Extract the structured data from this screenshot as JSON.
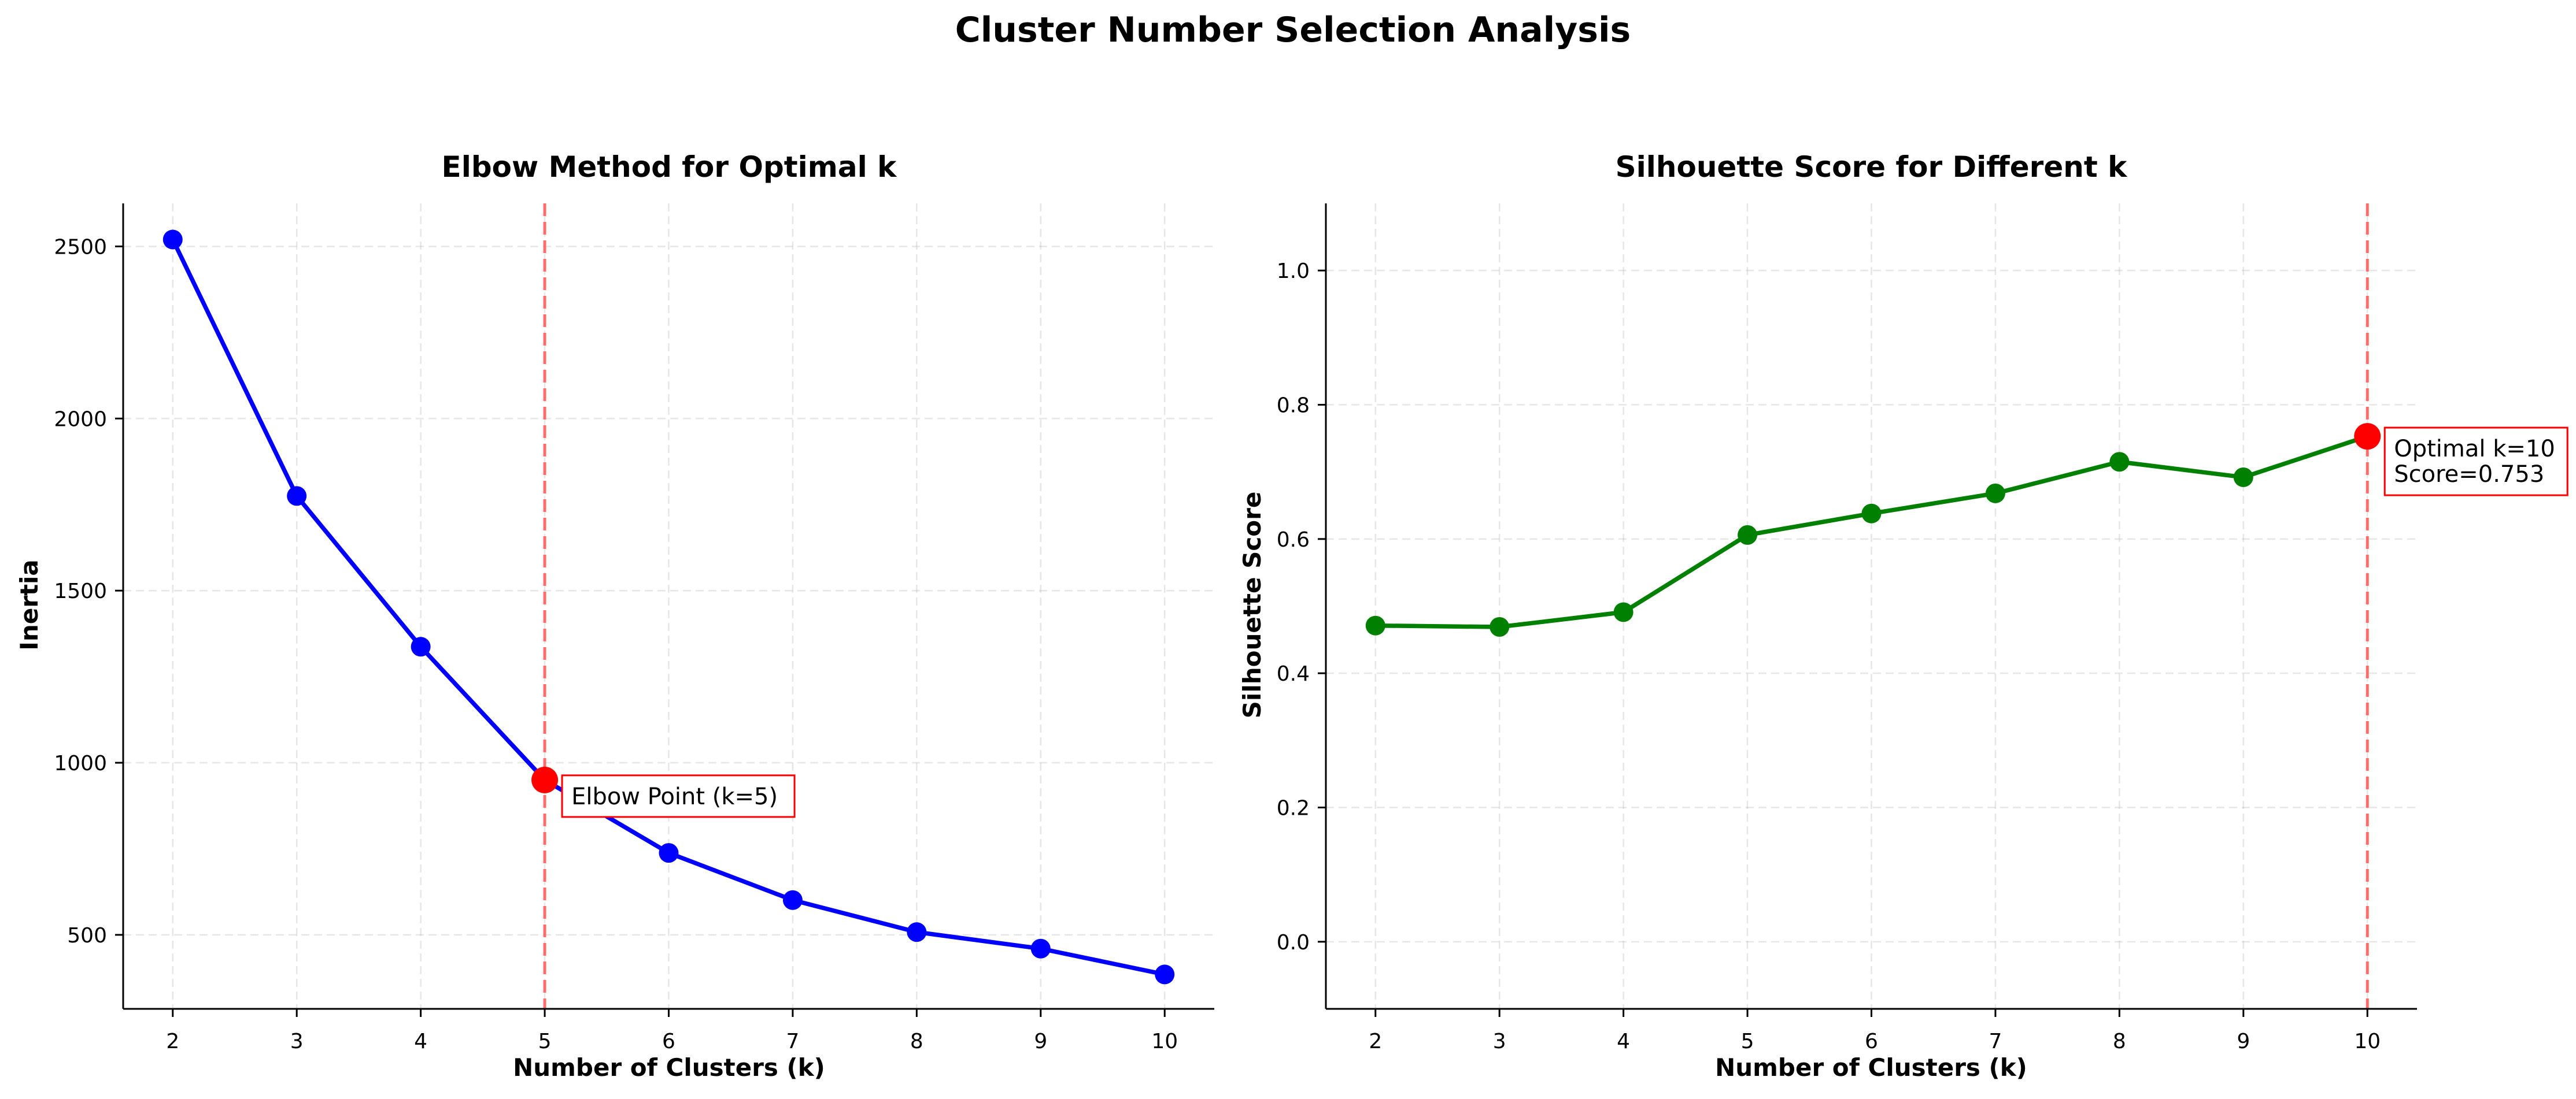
{
  "figure": {
    "title": "Cluster Number Selection Analysis"
  },
  "chart_data": [
    {
      "type": "line",
      "title": "Elbow Method for Optimal k",
      "xlabel": "Number of Clusters (k)",
      "ylabel": "Inertia",
      "x": [
        2,
        3,
        4,
        5,
        6,
        7,
        8,
        9,
        10
      ],
      "series": [
        {
          "values": [
            2520,
            1775,
            1337,
            950,
            738,
            601,
            508,
            460,
            385
          ],
          "color": "#0000ff"
        }
      ],
      "xticks": [
        2,
        3,
        4,
        5,
        6,
        7,
        8,
        9,
        10
      ],
      "yticks": [
        500,
        1000,
        1500,
        2000,
        2500
      ],
      "xlim": [
        1.6,
        10.4
      ],
      "ylim": [
        285,
        2625
      ],
      "grid": true,
      "highlight": {
        "x": 5,
        "y": 950,
        "color": "#ff0000"
      },
      "vline": {
        "x": 5,
        "color": "#ff6666",
        "style": "dashed"
      },
      "annotation": {
        "text": "Elbow Point (k=5)"
      }
    },
    {
      "type": "line",
      "title": "Silhouette Score for Different k",
      "xlabel": "Number of Clusters (k)",
      "ylabel": "Silhouette Score",
      "x": [
        2,
        3,
        4,
        5,
        6,
        7,
        8,
        9,
        10
      ],
      "series": [
        {
          "values": [
            0.471,
            0.469,
            0.491,
            0.606,
            0.638,
            0.668,
            0.715,
            0.692,
            0.753
          ],
          "color": "#008000"
        }
      ],
      "xticks": [
        2,
        3,
        4,
        5,
        6,
        7,
        8,
        9,
        10
      ],
      "yticks": [
        0.0,
        0.2,
        0.4,
        0.6,
        0.8,
        1.0
      ],
      "ytick_labels": [
        "0.0",
        "0.2",
        "0.4",
        "0.6",
        "0.8",
        "1.0"
      ],
      "xlim": [
        1.6,
        10.4
      ],
      "ylim": [
        -0.1,
        1.1
      ],
      "grid": true,
      "highlight": {
        "x": 10,
        "y": 0.753,
        "color": "#ff0000"
      },
      "vline": {
        "x": 10,
        "color": "#ff6666",
        "style": "dashed"
      },
      "annotation": {
        "lines": [
          "Optimal k=10",
          "Score=0.753"
        ]
      }
    }
  ]
}
